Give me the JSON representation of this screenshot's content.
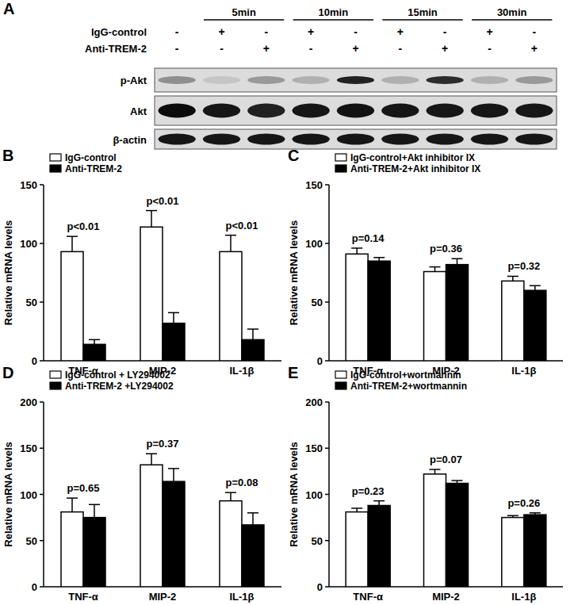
{
  "blot": {
    "panel_label": "A",
    "time_labels": [
      "5min",
      "10min",
      "15min",
      "30min"
    ],
    "treatments": [
      {
        "label": "IgG-control",
        "signs": [
          "-",
          "+",
          "-",
          "+",
          "-",
          "+",
          "-",
          "+",
          "-"
        ]
      },
      {
        "label": "Anti-TREM-2",
        "signs": [
          "-",
          "-",
          "+",
          "-",
          "+",
          "-",
          "+",
          "-",
          "+"
        ]
      }
    ],
    "bands": [
      {
        "label": "p-Akt",
        "intensity": [
          0.35,
          0.1,
          0.3,
          0.2,
          0.85,
          0.2,
          0.8,
          0.2,
          0.3
        ]
      },
      {
        "label": "Akt",
        "intensity": [
          0.95,
          0.9,
          0.85,
          0.9,
          0.92,
          0.9,
          0.9,
          0.9,
          0.9
        ]
      },
      {
        "label": "β-actin",
        "intensity": [
          0.9,
          0.9,
          0.9,
          0.9,
          0.9,
          0.9,
          0.9,
          0.9,
          0.9
        ]
      }
    ]
  },
  "chart_data": [
    {
      "type": "bar",
      "panel_label": "B",
      "y_label": "Relative mRNA levels",
      "categories": [
        "TNF-α",
        "MIP-2",
        "IL-1β"
      ],
      "annotations": [
        "p<0.01",
        "p<0.01",
        "p<0.01"
      ],
      "series": [
        {
          "name": "IgG-control",
          "color": "#ffffff",
          "values": [
            93,
            114,
            93
          ],
          "errors": [
            13,
            14,
            14
          ]
        },
        {
          "name": "Anti-TREM-2",
          "color": "#000000",
          "values": [
            14,
            32,
            18
          ],
          "errors": [
            4,
            9,
            9
          ]
        }
      ],
      "ylim": [
        0,
        150
      ],
      "yticks": [
        0,
        50,
        100,
        150
      ],
      "legend": "upper left"
    },
    {
      "type": "bar",
      "panel_label": "C",
      "y_label": "Relative mRNA levels",
      "categories": [
        "TNF-α",
        "MIP-2",
        "IL-1β"
      ],
      "annotations": [
        "p=0.14",
        "p=0.36",
        "p=0.32"
      ],
      "series": [
        {
          "name": "IgG-control+Akt inhibitor IX",
          "color": "#ffffff",
          "values": [
            91,
            76,
            68
          ],
          "errors": [
            5,
            4,
            4
          ]
        },
        {
          "name": "Anti-TREM-2+Akt inhibitor IX",
          "color": "#000000",
          "values": [
            85,
            82,
            60
          ],
          "errors": [
            3,
            5,
            4
          ]
        }
      ],
      "ylim": [
        0,
        150
      ],
      "yticks": [
        0,
        50,
        100,
        150
      ],
      "legend": "upper left"
    },
    {
      "type": "bar",
      "panel_label": "D",
      "y_label": "Relative mRNA levels",
      "categories": [
        "TNF-α",
        "MIP-2",
        "IL-1β"
      ],
      "annotations": [
        "p=0.65",
        "p=0.37",
        "p=0.08"
      ],
      "series": [
        {
          "name": "IgG-control + LY294002",
          "color": "#ffffff",
          "values": [
            81,
            132,
            93
          ],
          "errors": [
            15,
            12,
            9
          ]
        },
        {
          "name": "Anti-TREM-2 +LY294002",
          "color": "#000000",
          "values": [
            75,
            114,
            67
          ],
          "errors": [
            14,
            14,
            13
          ]
        }
      ],
      "ylim": [
        0,
        200
      ],
      "yticks": [
        0,
        50,
        100,
        150,
        200
      ],
      "legend": "upper left"
    },
    {
      "type": "bar",
      "panel_label": "E",
      "y_label": "Relative mRNA levels",
      "categories": [
        "TNF-α",
        "MIP-2",
        "IL-1β"
      ],
      "annotations": [
        "p=0.23",
        "p=0.07",
        "p=0.26"
      ],
      "series": [
        {
          "name": "IgG-control+wortmannin",
          "color": "#ffffff",
          "values": [
            81,
            122,
            75
          ],
          "errors": [
            4,
            5,
            2
          ]
        },
        {
          "name": "Anti-TREM-2+wortmannin",
          "color": "#000000",
          "values": [
            88,
            112,
            78
          ],
          "errors": [
            5,
            3,
            2
          ]
        }
      ],
      "ylim": [
        0,
        200
      ],
      "yticks": [
        0,
        50,
        100,
        150,
        200
      ],
      "legend": "upper left"
    }
  ]
}
